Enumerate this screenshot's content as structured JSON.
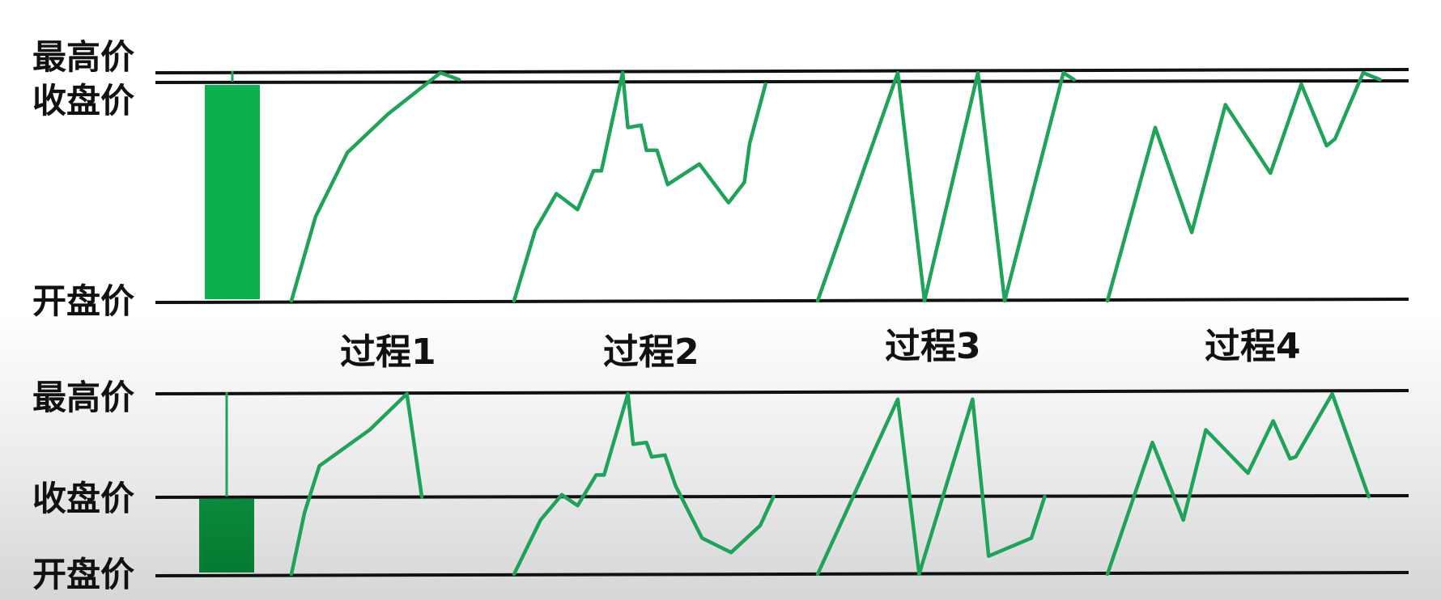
{
  "labels": {
    "high": "最高价",
    "close": "收盘价",
    "open": "开盘价"
  },
  "processes": [
    "过程1",
    "过程2",
    "过程3",
    "过程4"
  ],
  "colors": {
    "line": "#1fa35a",
    "candle_top": "#0bb14c",
    "candle_bottom": "#0a8a3c",
    "axis": "#111111"
  },
  "panels": [
    {
      "name": "top",
      "description_levels": {
        "open": 0,
        "close": 0.95,
        "high": 1.0
      },
      "paths": [
        [
          [
            0,
            0
          ],
          [
            0.13,
            0.37
          ],
          [
            0.3,
            0.65
          ],
          [
            0.52,
            0.82
          ],
          [
            0.8,
            1.0
          ],
          [
            0.9,
            0.97
          ]
        ],
        [
          [
            0,
            0
          ],
          [
            0.08,
            0.31
          ],
          [
            0.16,
            0.47
          ],
          [
            0.24,
            0.4
          ],
          [
            0.3,
            0.57
          ],
          [
            0.33,
            0.57
          ],
          [
            0.41,
            1.0
          ],
          [
            0.43,
            0.76
          ],
          [
            0.48,
            0.77
          ],
          [
            0.5,
            0.66
          ],
          [
            0.54,
            0.66
          ],
          [
            0.58,
            0.51
          ],
          [
            0.7,
            0.6
          ],
          [
            0.81,
            0.43
          ],
          [
            0.87,
            0.52
          ],
          [
            0.89,
            0.69
          ],
          [
            0.95,
            0.95
          ]
        ],
        [
          [
            0,
            0
          ],
          [
            0.3,
            1.0
          ],
          [
            0.4,
            0
          ],
          [
            0.6,
            1.0
          ],
          [
            0.7,
            0
          ],
          [
            0.92,
            1.0
          ],
          [
            0.96,
            0.97
          ]
        ],
        [
          [
            0,
            0
          ],
          [
            0.17,
            0.76
          ],
          [
            0.3,
            0.3
          ],
          [
            0.42,
            0.86
          ],
          [
            0.58,
            0.56
          ],
          [
            0.69,
            0.95
          ],
          [
            0.78,
            0.68
          ],
          [
            0.81,
            0.71
          ],
          [
            0.91,
            1.0
          ],
          [
            0.97,
            0.97
          ]
        ]
      ]
    },
    {
      "name": "bottom",
      "description_levels": {
        "open": 0,
        "close": 0.43,
        "high": 1.0
      },
      "paths": [
        [
          [
            0,
            0
          ],
          [
            0.07,
            0.34
          ],
          [
            0.15,
            0.6
          ],
          [
            0.42,
            0.8
          ],
          [
            0.62,
            1.0
          ],
          [
            0.7,
            0.43
          ]
        ],
        [
          [
            0,
            0
          ],
          [
            0.1,
            0.3
          ],
          [
            0.18,
            0.44
          ],
          [
            0.24,
            0.38
          ],
          [
            0.31,
            0.55
          ],
          [
            0.34,
            0.55
          ],
          [
            0.43,
            1.0
          ],
          [
            0.45,
            0.72
          ],
          [
            0.5,
            0.73
          ],
          [
            0.52,
            0.65
          ],
          [
            0.57,
            0.66
          ],
          [
            0.61,
            0.49
          ],
          [
            0.71,
            0.2
          ],
          [
            0.82,
            0.12
          ],
          [
            0.93,
            0.27
          ],
          [
            0.98,
            0.43
          ]
        ],
        [
          [
            0,
            0
          ],
          [
            0.3,
            0.97
          ],
          [
            0.38,
            0
          ],
          [
            0.58,
            0.97
          ],
          [
            0.64,
            0.1
          ],
          [
            0.8,
            0.2
          ],
          [
            0.85,
            0.43
          ]
        ],
        [
          [
            0,
            0
          ],
          [
            0.16,
            0.73
          ],
          [
            0.27,
            0.3
          ],
          [
            0.35,
            0.8
          ],
          [
            0.5,
            0.56
          ],
          [
            0.59,
            0.85
          ],
          [
            0.65,
            0.64
          ],
          [
            0.67,
            0.65
          ],
          [
            0.8,
            1.0
          ],
          [
            0.93,
            0.43
          ]
        ]
      ]
    }
  ]
}
